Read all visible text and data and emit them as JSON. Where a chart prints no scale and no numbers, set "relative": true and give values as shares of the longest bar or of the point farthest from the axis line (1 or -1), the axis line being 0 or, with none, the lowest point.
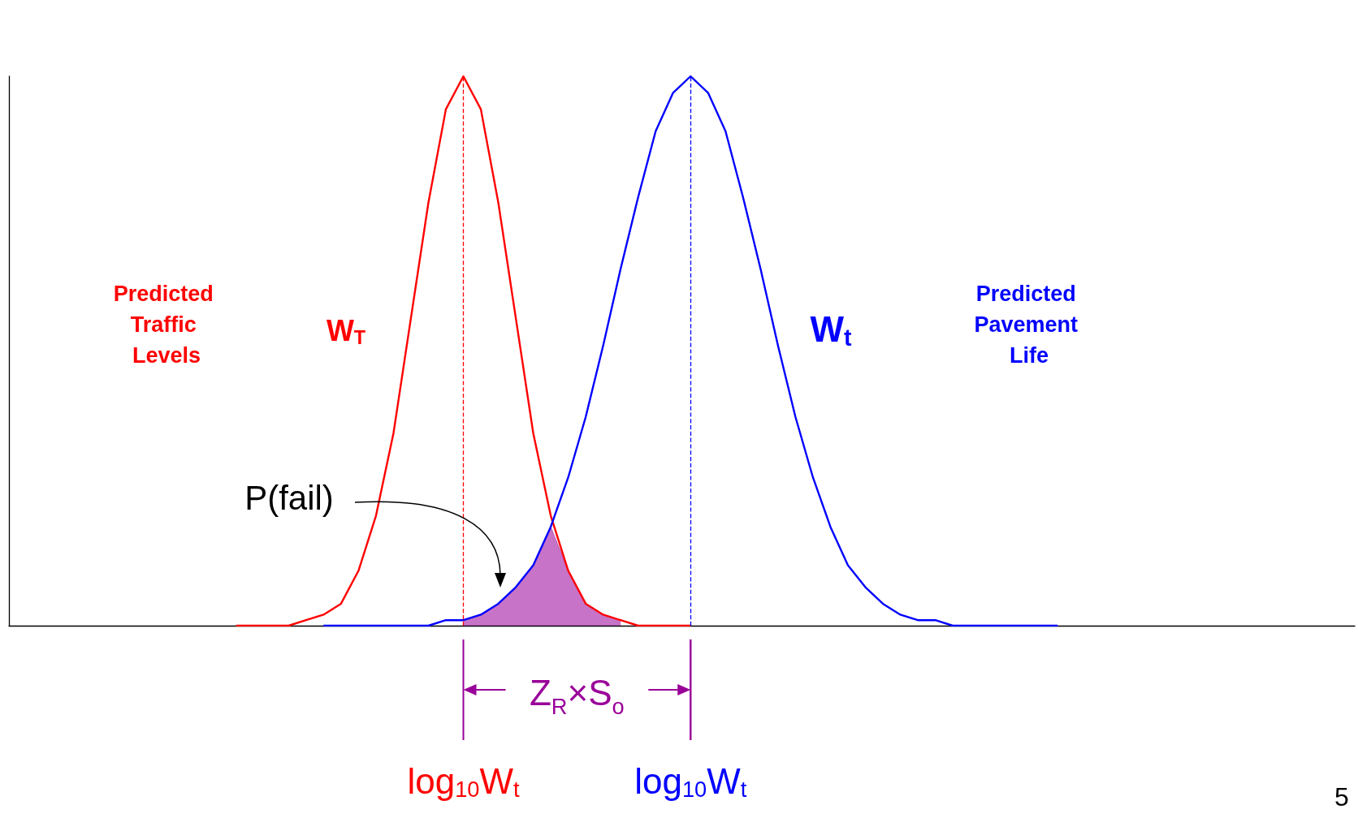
{
  "chart_data": {
    "type": "line",
    "relative": true,
    "grid": false,
    "categories": [
      null,
      null,
      null,
      null,
      null,
      null,
      null,
      null,
      null,
      null,
      null,
      null,
      null,
      null,
      null,
      null,
      null,
      null,
      null,
      null,
      null,
      null,
      null,
      null,
      null,
      null,
      "log$_{10}$W$_{t}$",
      null,
      null,
      null,
      null,
      null,
      null,
      null,
      null,
      null,
      null,
      null,
      null,
      "log$_{10}$W$_{t}$",
      null,
      null,
      null,
      null,
      null,
      null,
      null,
      null,
      null,
      null,
      null,
      null,
      null,
      null,
      null,
      null,
      null,
      null,
      null,
      null,
      null,
      null,
      null,
      null,
      null,
      null,
      null,
      null,
      null,
      null,
      null,
      null,
      null,
      null,
      null,
      null,
      null,
      null
    ],
    "series": [
      {
        "name": "W$_{T}$",
        "color": "#ff0000",
        "values": [
          null,
          null,
          null,
          null,
          null,
          null,
          null,
          null,
          null,
          null,
          null,
          null,
          null,
          0,
          0,
          0,
          0,
          0.01,
          0.02,
          0.04,
          0.1,
          0.2,
          0.35,
          0.56,
          0.77,
          0.94,
          1,
          0.94,
          0.77,
          0.56,
          0.35,
          0.2,
          0.1,
          0.04,
          0.02,
          0.01,
          0,
          0,
          0,
          0,
          null,
          null,
          null,
          null,
          null,
          null,
          null,
          null,
          null,
          null,
          null,
          null,
          null,
          null,
          null,
          null,
          null,
          null,
          null,
          null,
          null,
          null,
          null,
          null,
          null,
          null,
          null,
          null,
          null,
          null,
          null,
          null,
          null,
          null,
          null,
          null,
          null,
          null
        ]
      },
      {
        "name": "W$_{t}$",
        "color": "#0000ff",
        "values": [
          null,
          null,
          null,
          null,
          null,
          null,
          null,
          null,
          null,
          null,
          null,
          null,
          null,
          null,
          null,
          null,
          null,
          null,
          0,
          0,
          0,
          0,
          0,
          0,
          0,
          0.01,
          0.01,
          0.02,
          0.04,
          0.07,
          0.11,
          0.18,
          0.27,
          0.38,
          0.51,
          0.65,
          0.78,
          0.9,
          0.97,
          1,
          0.97,
          0.9,
          0.78,
          0.65,
          0.51,
          0.38,
          0.27,
          0.18,
          0.11,
          0.07,
          0.04,
          0.02,
          0.01,
          0.01,
          0,
          0,
          0,
          0,
          0,
          0,
          0,
          null,
          null,
          null,
          null,
          null,
          null,
          null,
          null,
          null,
          null,
          null,
          null,
          null,
          null,
          null,
          null,
          null
        ]
      },
      {
        "type": "area",
        "color": "#990099",
        "values": [
          null,
          null,
          null,
          null,
          null,
          null,
          null,
          null,
          null,
          null,
          null,
          null,
          null,
          null,
          null,
          null,
          null,
          null,
          null,
          null,
          null,
          null,
          null,
          null,
          null,
          null,
          0.01,
          0.02,
          0.04,
          0.07,
          0.11,
          0.18,
          0.1,
          0.04,
          0.02,
          0.01,
          null,
          null,
          null,
          null,
          null,
          null,
          null,
          null,
          null,
          null,
          null,
          null,
          null,
          null,
          null,
          null,
          null,
          null,
          null,
          null,
          null,
          null,
          null,
          null,
          null,
          null,
          null,
          null,
          null,
          null,
          null,
          null,
          null,
          null,
          null,
          null,
          null,
          null,
          null,
          null,
          null,
          null
        ]
      }
    ],
    "annotations": [
      "Predicted Traffic Levels",
      "Predicted Pavement Life",
      "P(fail)",
      "Z$_{R}$×S$_{o}$",
      "5"
    ]
  }
}
